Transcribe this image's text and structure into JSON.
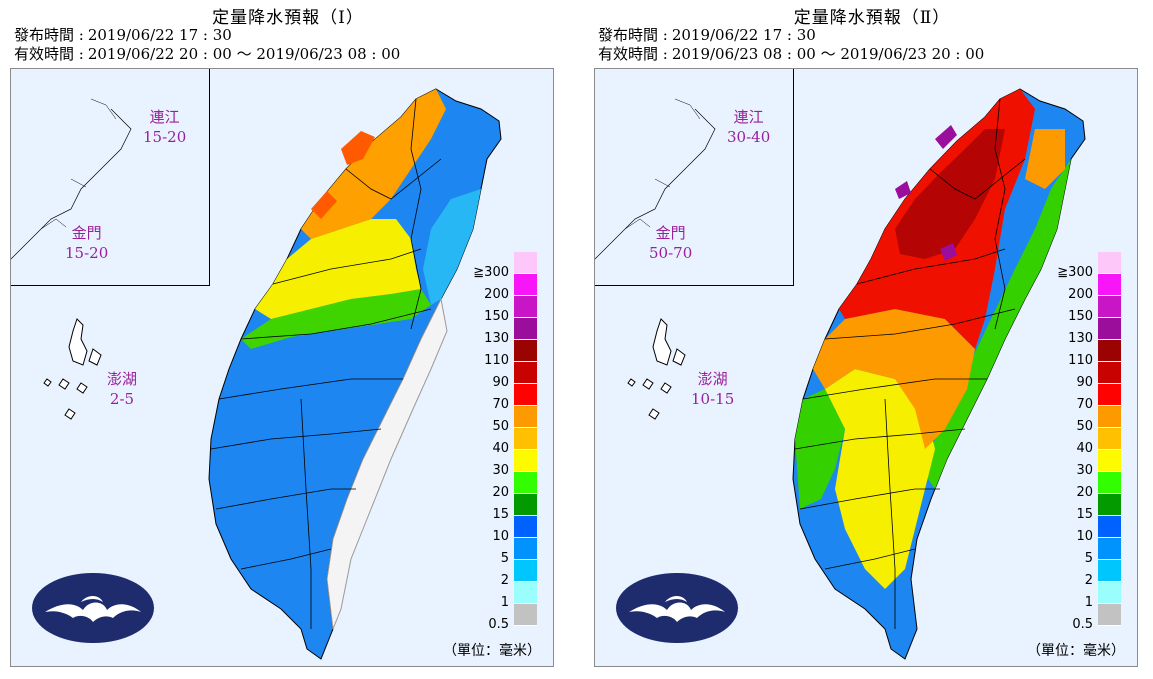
{
  "panels": [
    {
      "title": "定量降水預報（Ⅰ）",
      "issue_label": "發布時間 :",
      "issue_time": "2019/06/22 17 : 30",
      "valid_label": "有效時間 :",
      "valid_time": "2019/06/22 20 : 00 ～ 2019/06/23 08 : 00",
      "islands": [
        {
          "name": "連江",
          "value": "15-20"
        },
        {
          "name": "金門",
          "value": "15-20"
        },
        {
          "name": "澎湖",
          "value": "2-5"
        }
      ]
    },
    {
      "title": "定量降水預報（Ⅱ）",
      "issue_label": "發布時間 :",
      "issue_time": "2019/06/22 17 : 30",
      "valid_label": "有效時間 :",
      "valid_time": "2019/06/23 08 : 00 ～ 2019/06/23 20 : 00",
      "islands": [
        {
          "name": "連江",
          "value": "30-40"
        },
        {
          "name": "金門",
          "value": "50-70"
        },
        {
          "name": "澎湖",
          "value": "10-15"
        }
      ]
    }
  ],
  "legend": {
    "labels": [
      "≧300",
      "200",
      "150",
      "130",
      "110",
      "90",
      "70",
      "50",
      "40",
      "30",
      "20",
      "15",
      "10",
      "5",
      "2",
      "1",
      "0.5"
    ],
    "colors": [
      "#fdc8f9",
      "#f815f7",
      "#c816c6",
      "#9b0e9b",
      "#9b0202",
      "#c80101",
      "#fe0101",
      "#fd9a00",
      "#fec000",
      "#fefb00",
      "#32fe00",
      "#039a00",
      "#0062fe",
      "#0193fd",
      "#00c6fe",
      "#99fefc",
      "#c2c2c2"
    ],
    "unit": "（單位：毫米）"
  }
}
